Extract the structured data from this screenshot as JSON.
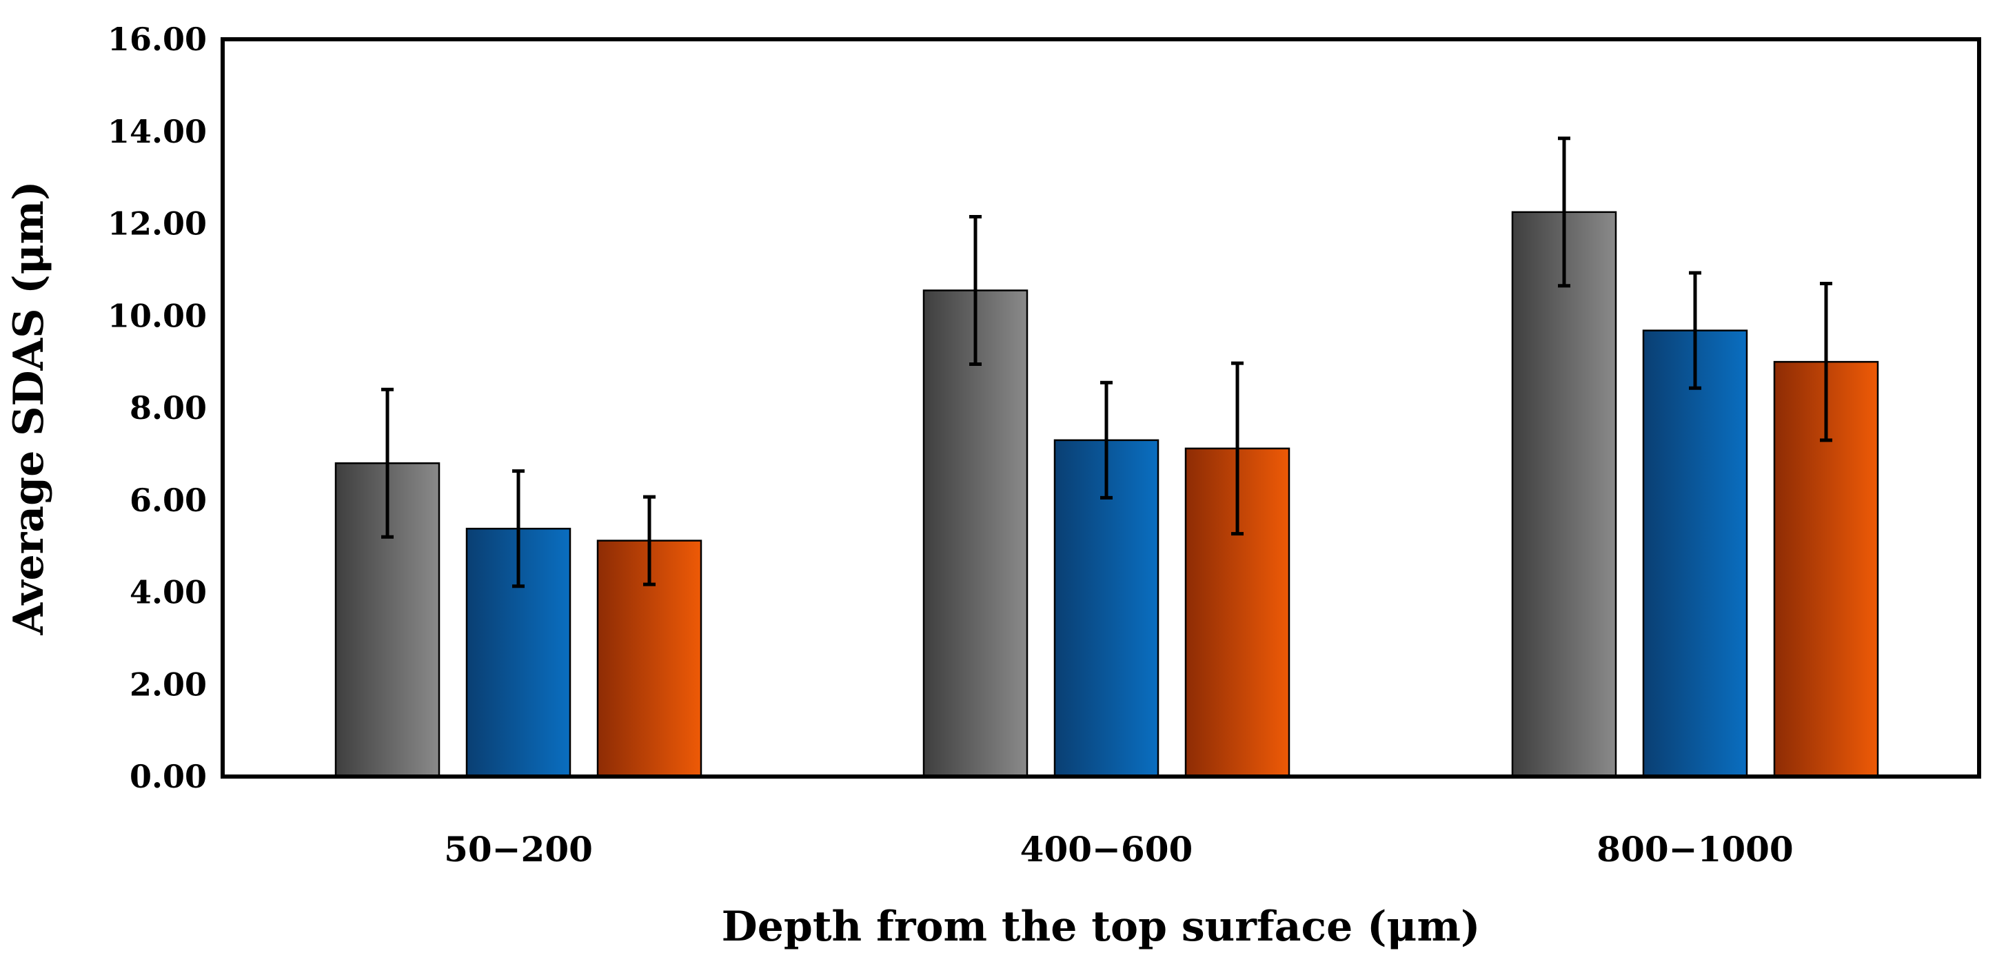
{
  "chart_data": {
    "type": "bar",
    "title": "",
    "xlabel": "Depth from the top surface (μm)",
    "ylabel": "Average SDAS (μm)",
    "ylim": [
      0,
      16
    ],
    "ytick_step": 2,
    "ytick_labels": [
      "0.00",
      "2.00",
      "4.00",
      "6.00",
      "8.00",
      "10.00",
      "12.00",
      "14.00",
      "16.00"
    ],
    "categories": [
      "50−200",
      "400−600",
      "800−1000"
    ],
    "grid": false,
    "legend": "none",
    "series": [
      {
        "name": "series-gray",
        "color_dark": "#3f3f3f",
        "color_light": "#8a8a8a",
        "values": [
          6.8,
          10.55,
          12.25
        ],
        "errors": [
          1.6,
          1.6,
          1.6
        ]
      },
      {
        "name": "series-blue",
        "color_dark": "#0a3f73",
        "color_light": "#0a6ec0",
        "values": [
          5.38,
          7.3,
          9.68
        ],
        "errors": [
          1.25,
          1.25,
          1.25
        ]
      },
      {
        "name": "series-orange",
        "color_dark": "#8e2c05",
        "color_light": "#ee5a06",
        "values": [
          5.12,
          7.12,
          9.0
        ],
        "errors": [
          0.95,
          1.85,
          1.7
        ]
      }
    ]
  }
}
